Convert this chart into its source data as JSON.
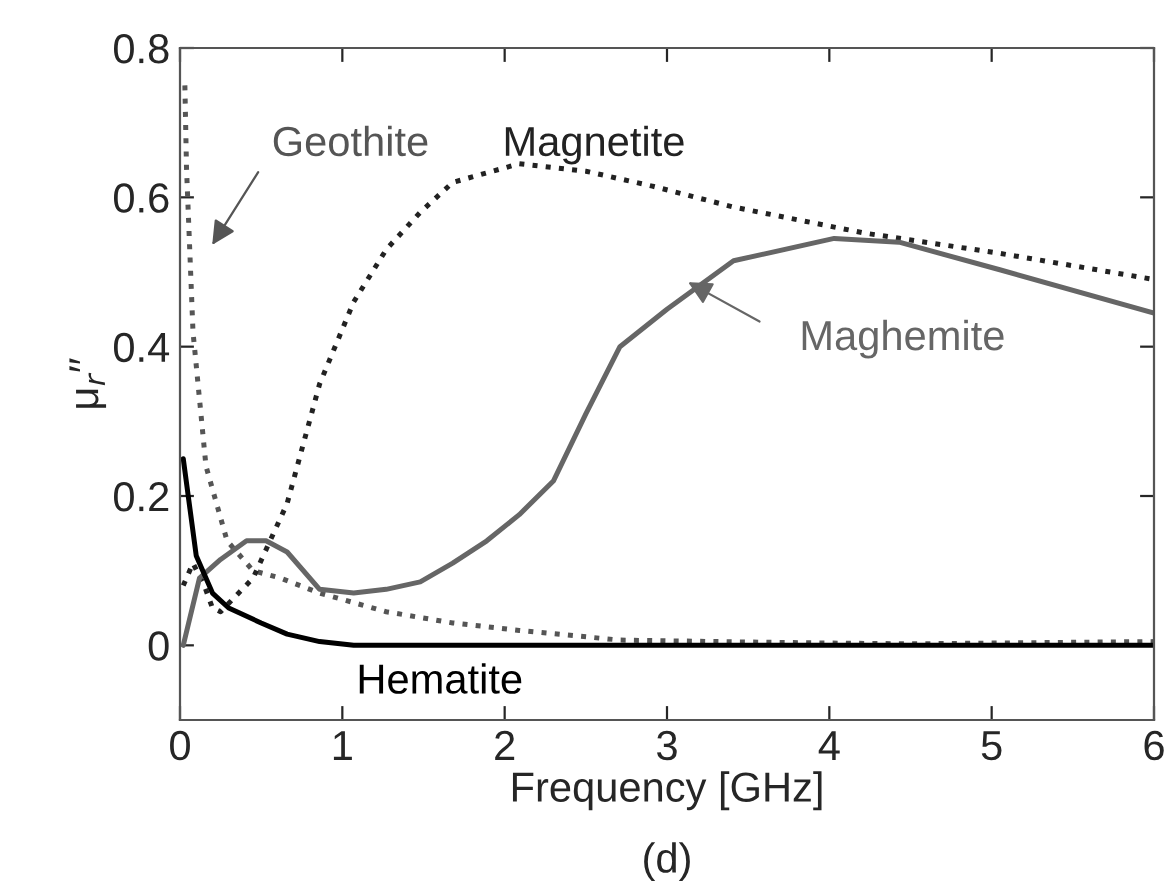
{
  "chart_data": {
    "type": "line",
    "xlabel": "Frequency [GHz]",
    "ylabel": "μ$_{r}$′′",
    "xlim": [
      0,
      6
    ],
    "ylim": [
      -0.1,
      0.8
    ],
    "xticks": [
      0,
      1,
      2,
      3,
      4,
      5,
      6
    ],
    "yticks": [
      0,
      0.2,
      0.4,
      0.6,
      0.8
    ],
    "grid": false,
    "legend": false,
    "annotations": [
      "(d)"
    ],
    "series": [
      {
        "name": "Geothite",
        "color": "#555555",
        "line_style": "dotted",
        "x": [
          0.03,
          0.04,
          0.08,
          0.16,
          0.29,
          0.45,
          0.62,
          0.86,
          1.27,
          1.68,
          2.09,
          2.71,
          3.32,
          4.0,
          4.5,
          5.0,
          5.5,
          6.0
        ],
        "values": [
          0.75,
          0.64,
          0.42,
          0.24,
          0.14,
          0.1,
          0.09,
          0.07,
          0.045,
          0.03,
          0.02,
          0.007,
          0.005,
          0.003,
          0.002,
          0.003,
          0.004,
          0.005
        ]
      },
      {
        "name": "Magnetite",
        "color": "#222222",
        "line_style": "dotted",
        "x": [
          0.02,
          0.08,
          0.15,
          0.2,
          0.25,
          0.45,
          0.66,
          0.86,
          1.07,
          1.27,
          1.48,
          1.68,
          2.09,
          2.5,
          2.91,
          3.41,
          4.22,
          5.05,
          6.0
        ],
        "values": [
          0.08,
          0.11,
          0.08,
          0.05,
          0.045,
          0.09,
          0.19,
          0.35,
          0.46,
          0.53,
          0.58,
          0.62,
          0.645,
          0.635,
          0.615,
          0.587,
          0.552,
          0.525,
          0.49
        ]
      },
      {
        "name": "Maghemite",
        "color": "#666666",
        "line_style": "solid",
        "x": [
          0.02,
          0.12,
          0.25,
          0.41,
          0.53,
          0.66,
          0.86,
          1.07,
          1.27,
          1.48,
          1.68,
          1.89,
          2.09,
          2.3,
          2.5,
          2.71,
          3.0,
          3.41,
          4.03,
          4.43,
          5.05,
          6.0
        ],
        "values": [
          0.0,
          0.09,
          0.115,
          0.14,
          0.14,
          0.125,
          0.075,
          0.07,
          0.075,
          0.085,
          0.11,
          0.14,
          0.175,
          0.22,
          0.31,
          0.4,
          0.45,
          0.515,
          0.545,
          0.54,
          0.503,
          0.445
        ]
      },
      {
        "name": "Hematite",
        "color": "#000000",
        "line_style": "solid",
        "x": [
          0.02,
          0.1,
          0.2,
          0.3,
          0.5,
          0.66,
          0.86,
          1.07,
          2.0,
          3.0,
          4.0,
          5.0,
          6.0
        ],
        "values": [
          0.25,
          0.12,
          0.07,
          0.05,
          0.03,
          0.015,
          0.005,
          0.0,
          0.0,
          0.0,
          0.0,
          0.0,
          0.0
        ]
      }
    ]
  }
}
